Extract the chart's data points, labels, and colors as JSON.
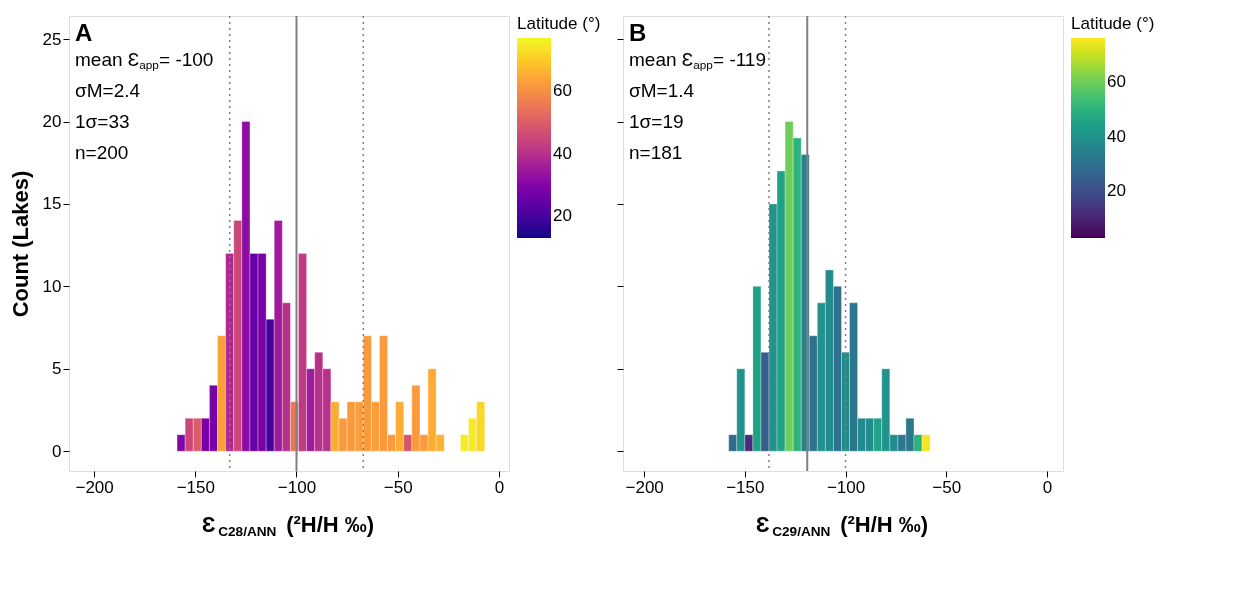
{
  "chart_data": [
    {
      "type": "histogram",
      "bins": [
        -159,
        -155,
        -151,
        -147,
        -143,
        -139,
        -135,
        -131,
        -127,
        -123,
        -119,
        -115,
        -111,
        -107,
        -103,
        -99,
        -95,
        -91,
        -87,
        -83,
        -79,
        -75,
        -71,
        -67,
        -63,
        -59,
        -55,
        -51,
        -47,
        -43,
        -39,
        -35,
        -31,
        -27,
        -23,
        -19,
        -15,
        -11,
        -7
      ],
      "values": [
        1,
        2,
        2,
        2,
        4,
        7,
        12,
        14,
        20,
        12,
        12,
        8,
        14,
        9,
        3,
        12,
        5,
        6,
        5,
        3,
        2,
        3,
        3,
        7,
        3,
        7,
        1,
        3,
        1,
        4,
        1,
        5,
        1,
        0,
        0,
        1,
        2,
        3
      ],
      "cvalues": [
        30,
        45,
        50,
        28,
        28,
        63,
        38,
        45,
        32,
        25,
        28,
        20,
        35,
        40,
        55,
        42,
        35,
        40,
        40,
        65,
        62,
        62,
        63,
        62,
        63,
        62,
        62,
        65,
        48,
        62,
        62,
        65,
        66,
        null,
        null,
        75,
        75,
        72
      ],
      "xlim": [
        -212.4,
        5
      ],
      "xticks": [
        -200,
        -150,
        -100,
        -50,
        0
      ],
      "ylim": [
        -1.2,
        26.4
      ],
      "yticks": [
        0,
        5,
        10,
        15,
        20,
        25
      ],
      "xlabel": "Ɛ$_{C28/ANN}$ (²H/H ‰)",
      "ylabel": "Count (Lakes)",
      "legend_title": "Latitude (°)",
      "clim": [
        13,
        77
      ],
      "cticks": [
        20,
        40,
        60
      ],
      "grid": false,
      "ref_lines": [
        {
          "axis": "x",
          "value": -100,
          "line_style": "solid",
          "color": "#808080"
        },
        {
          "axis": "x",
          "value": -133,
          "line_style": "dotted",
          "color": "#808080"
        },
        {
          "axis": "x",
          "value": -67,
          "line_style": "dotted",
          "color": "#808080"
        }
      ],
      "annotations": [
        "A",
        "mean Ɛ$_{app}$= -100",
        "σM=2.4",
        "1σ=33",
        "n=200"
      ]
    },
    {
      "type": "histogram",
      "bins": [
        -158,
        -154,
        -150,
        -146,
        -142,
        -138,
        -134,
        -130,
        -126,
        -122,
        -118,
        -114,
        -110,
        -106,
        -102,
        -98,
        -94,
        -90,
        -86,
        -82,
        -78,
        -74,
        -70,
        -66,
        -62,
        -58
      ],
      "values": [
        1,
        5,
        1,
        10,
        6,
        15,
        17,
        20,
        19,
        18,
        7,
        9,
        11,
        10,
        6,
        9,
        2,
        2,
        2,
        5,
        1,
        1,
        2,
        1,
        1
      ],
      "cvalues": [
        28,
        40,
        12,
        45,
        25,
        40,
        45,
        60,
        50,
        35,
        30,
        40,
        38,
        30,
        38,
        32,
        38,
        38,
        45,
        40,
        38,
        32,
        32,
        50,
        75
      ],
      "xlim": [
        -210.5,
        8
      ],
      "xticks": [
        -200,
        -150,
        -100,
        -50,
        0
      ],
      "ylim": [
        -1.2,
        26.4
      ],
      "yticks": [
        0,
        5,
        10,
        15,
        20,
        25
      ],
      "tick_labels": "x",
      "xlabel": "Ɛ$_{C29/ANN}$ (²H/H ‰)",
      "legend_title": "Latitude (°)",
      "clim": [
        3,
        76
      ],
      "cticks": [
        20,
        40,
        60
      ],
      "grid": false,
      "ref_lines": [
        {
          "axis": "x",
          "value": -119,
          "line_style": "solid",
          "color": "#808080"
        },
        {
          "axis": "x",
          "value": -138,
          "line_style": "dotted",
          "color": "#808080"
        },
        {
          "axis": "x",
          "value": -100,
          "line_style": "dotted",
          "color": "#808080"
        }
      ],
      "annotations": [
        "B",
        "mean Ɛ$_{app}$= -119",
        "σM=1.4",
        "1σ=19",
        "n=181"
      ]
    }
  ]
}
